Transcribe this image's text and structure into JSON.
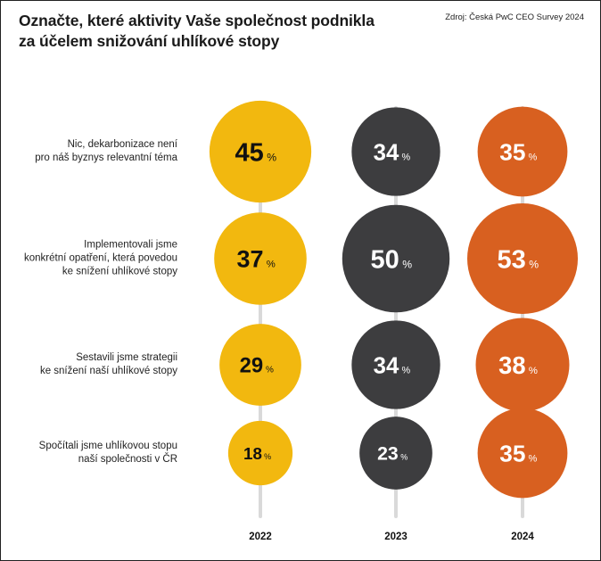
{
  "chart_data": {
    "type": "bubble",
    "title_lines": [
      "Označte, které aktivity Vaše společnost podnikla",
      "za účelem snižování uhlíkové stopy"
    ],
    "source": "Zdroj: Česká PwC CEO Survey 2024",
    "unit": "%",
    "years": [
      "2022",
      "2023",
      "2024"
    ],
    "colors": [
      "#f2b80f",
      "#3d3d3f",
      "#d86020"
    ],
    "rows": [
      {
        "label_lines": [
          "Nic, dekarbonizace není",
          "pro náš byznys relevantní téma"
        ],
        "values": [
          45,
          34,
          35
        ]
      },
      {
        "label_lines": [
          "Implementovali jsme",
          "konkrétní opatření, která povedou",
          "ke snížení uhlíkové stopy"
        ],
        "values": [
          37,
          50,
          53
        ]
      },
      {
        "label_lines": [
          "Sestavili jsme strategii",
          "ke snížení naší uhlíkové stopy"
        ],
        "values": [
          29,
          34,
          38
        ]
      },
      {
        "label_lines": [
          "Spočítali jsme uhlíkovou stopu",
          "naší společnosti v ČR"
        ],
        "values": [
          18,
          23,
          35
        ]
      }
    ]
  }
}
